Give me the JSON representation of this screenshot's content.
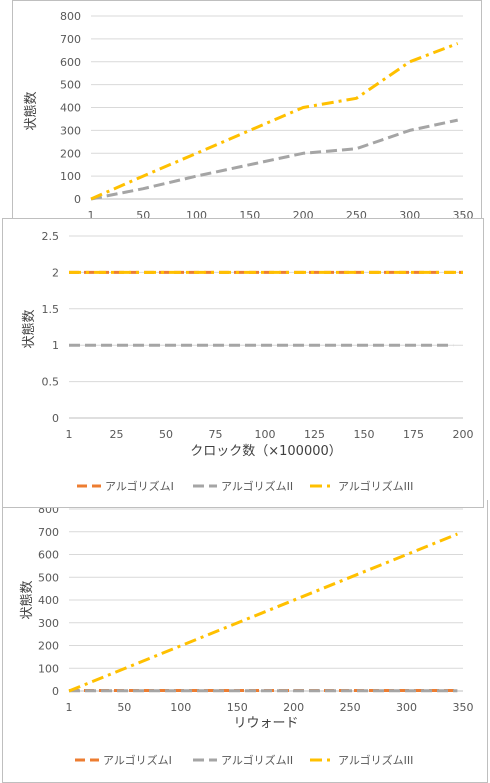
{
  "colors": {
    "alg1": "#ED7D31",
    "alg2": "#A5A5A5",
    "alg3": "#FFC000",
    "grid": "#D9D9D9",
    "axis": "#BFBFBF"
  },
  "legend": {
    "alg1": "アルゴリズムI",
    "alg2": "アルゴリズムII",
    "alg3": "アルゴリズムIII"
  },
  "chart_data": [
    {
      "type": "line",
      "title": "",
      "ylabel": "状態数",
      "xlabel": "",
      "ylim": [
        0,
        800
      ],
      "yticks": [
        "0",
        "100",
        "200",
        "300",
        "400",
        "500",
        "600",
        "700",
        "800"
      ],
      "xlim": [
        1,
        350
      ],
      "xticks": [
        "1",
        "50",
        "100",
        "150",
        "200",
        "250",
        "300",
        "350"
      ],
      "grid": true,
      "legend": "none",
      "series": [
        {
          "key": "alg2",
          "x": [
            1,
            50,
            100,
            150,
            200,
            250,
            300,
            345
          ],
          "values": [
            0,
            45,
            100,
            150,
            200,
            220,
            300,
            345
          ]
        },
        {
          "key": "alg3",
          "x": [
            1,
            50,
            100,
            150,
            200,
            250,
            300,
            345
          ],
          "values": [
            0,
            100,
            200,
            300,
            400,
            440,
            600,
            680
          ]
        }
      ]
    },
    {
      "type": "line",
      "title": "",
      "ylabel": "状態数",
      "xlabel": "クロック数（×100000）",
      "ylim": [
        0,
        2.5
      ],
      "yticks": [
        "0",
        "0.5",
        "1",
        "1.5",
        "2",
        "2.5"
      ],
      "xlim": [
        1,
        200
      ],
      "xticks": [
        "1",
        "25",
        "50",
        "75",
        "100",
        "125",
        "150",
        "175",
        "200"
      ],
      "grid": true,
      "legend": "bottom",
      "series": [
        {
          "key": "alg1",
          "x": [
            1,
            200
          ],
          "values": [
            2,
            2
          ]
        },
        {
          "key": "alg2",
          "x": [
            1,
            195
          ],
          "values": [
            1,
            1
          ]
        },
        {
          "key": "alg3",
          "x": [
            1,
            200
          ],
          "values": [
            2,
            2
          ]
        }
      ]
    },
    {
      "type": "line",
      "title": "",
      "ylabel": "状態数",
      "xlabel": "リウォード",
      "ylim": [
        0,
        800
      ],
      "yticks": [
        "0",
        "100",
        "200",
        "300",
        "400",
        "500",
        "600",
        "700",
        "800"
      ],
      "xlim": [
        1,
        350
      ],
      "xticks": [
        "1",
        "50",
        "100",
        "150",
        "200",
        "250",
        "300",
        "350"
      ],
      "grid": true,
      "legend": "bottom",
      "series": [
        {
          "key": "alg1",
          "x": [
            1,
            345
          ],
          "values": [
            2,
            2
          ]
        },
        {
          "key": "alg2",
          "x": [
            1,
            345
          ],
          "values": [
            1,
            1
          ]
        },
        {
          "key": "alg3",
          "x": [
            1,
            345
          ],
          "values": [
            0,
            690
          ]
        }
      ]
    }
  ]
}
